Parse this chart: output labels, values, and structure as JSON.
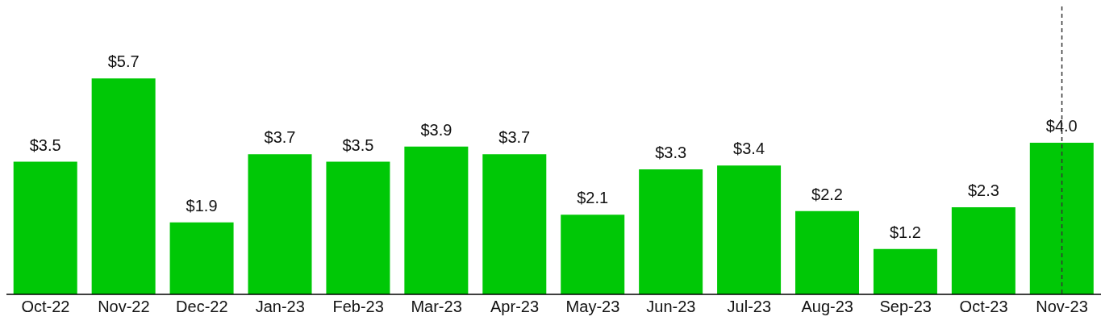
{
  "chart_data": {
    "type": "bar",
    "categories": [
      "Oct-22",
      "Nov-22",
      "Dec-22",
      "Jan-23",
      "Feb-23",
      "Mar-23",
      "Apr-23",
      "May-23",
      "Jun-23",
      "Jul-23",
      "Aug-23",
      "Sep-23",
      "Oct-23",
      "Nov-23"
    ],
    "values": [
      3.5,
      5.7,
      1.9,
      3.7,
      3.5,
      3.9,
      3.7,
      2.1,
      3.3,
      3.4,
      2.2,
      1.2,
      2.3,
      4.0
    ],
    "value_labels": [
      "$3.5",
      "$5.7",
      "$1.9",
      "$3.7",
      "$3.5",
      "$3.9",
      "$3.7",
      "$2.1",
      "$3.3",
      "$3.4",
      "$2.2",
      "$1.2",
      "$2.3",
      "$4.0"
    ],
    "color": "#00c806",
    "ylim": [
      0,
      7.6
    ],
    "tick_labels": "x",
    "ref_lines": [
      {
        "axis": "x",
        "value": "Nov-23",
        "color": "#333333",
        "line_style": "dashed"
      }
    ]
  }
}
